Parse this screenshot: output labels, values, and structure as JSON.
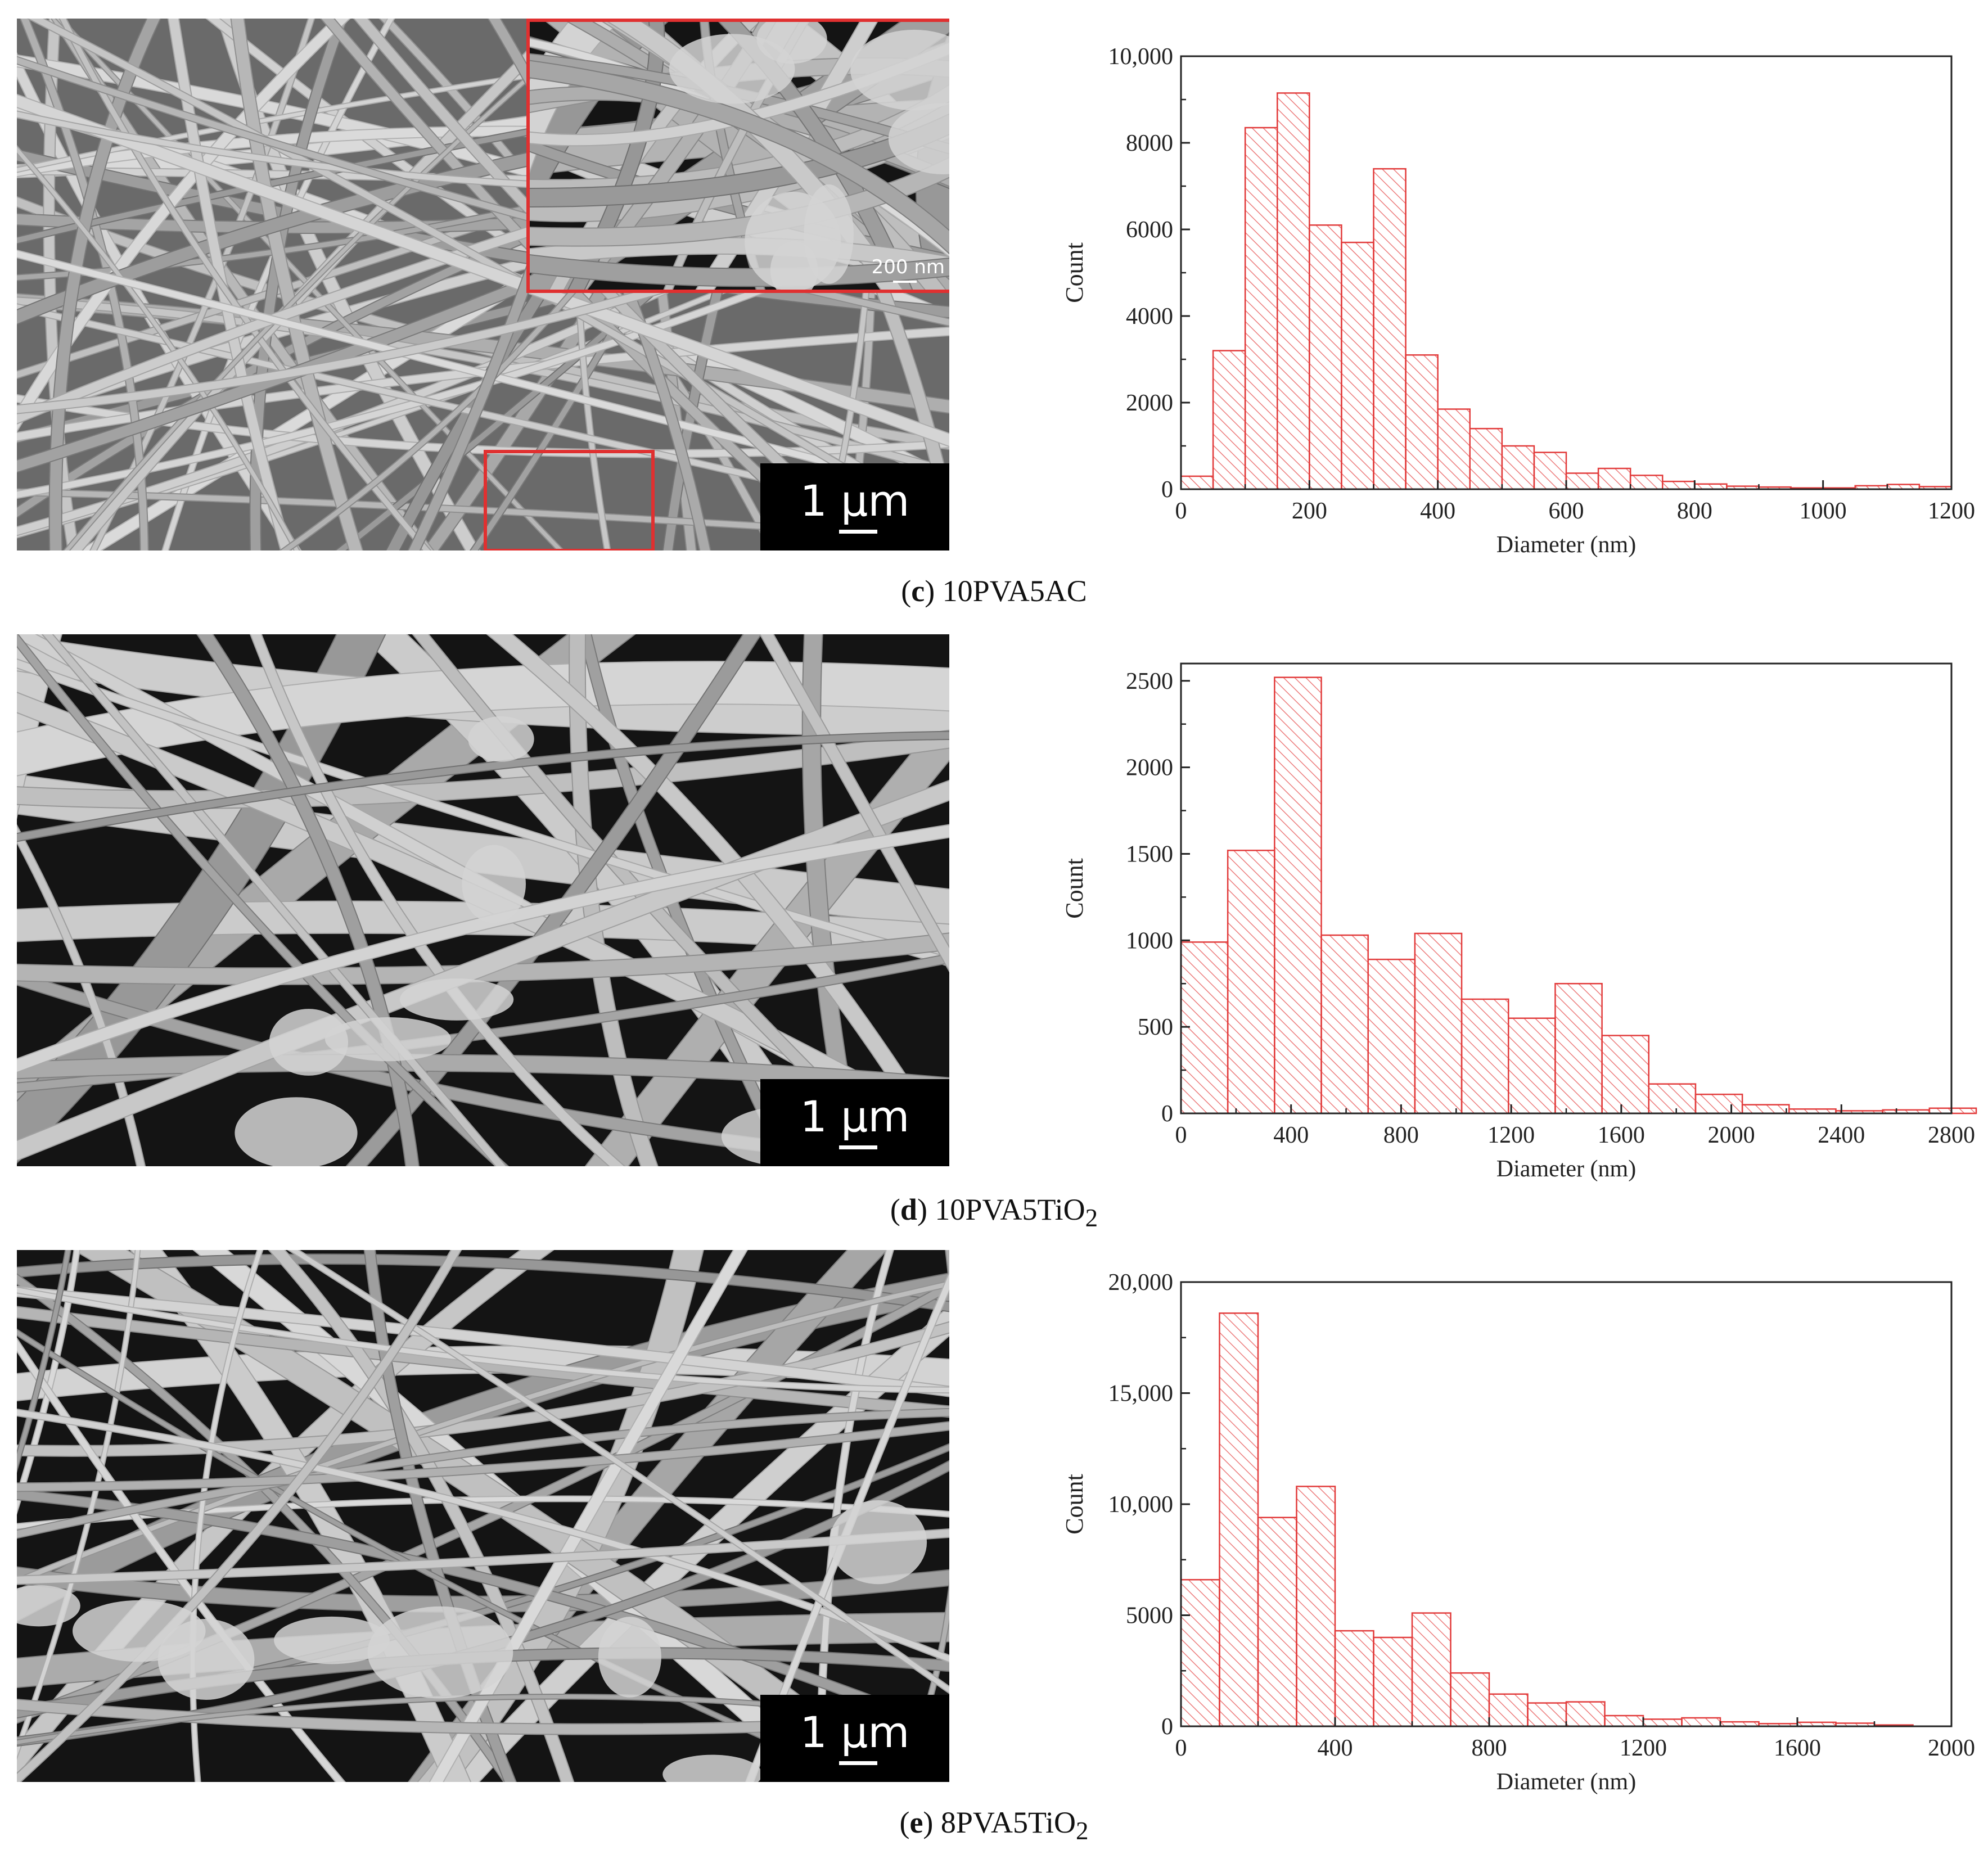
{
  "colors": {
    "bar_stroke": "#e23b3b",
    "hatch": "#ec7b7b",
    "inset_border": "#e03030"
  },
  "panels": [
    {
      "caption": {
        "letter": "c",
        "name": "10PVA5AC",
        "sub": ""
      },
      "micrograph": {
        "scale_bar": "1 µm",
        "inset_scale_bar": "200 nm",
        "style": "thin"
      }
    },
    {
      "caption": {
        "letter": "d",
        "name": "10PVA5TiO",
        "sub": "2"
      },
      "micrograph": {
        "scale_bar": "1 µm",
        "style": "thick"
      }
    },
    {
      "caption": {
        "letter": "e",
        "name": "8PVA5TiO",
        "sub": "2"
      },
      "micrograph": {
        "scale_bar": "1 µm",
        "style": "mixed"
      }
    }
  ],
  "chart_data": [
    {
      "type": "bar",
      "xlabel": "Diameter (nm)",
      "ylabel": "Count",
      "xlim": [
        0,
        1200
      ],
      "ylim": [
        0,
        10000
      ],
      "xticks": [
        0,
        200,
        400,
        600,
        800,
        1000,
        1200
      ],
      "yticks": [
        0,
        2000,
        4000,
        6000,
        8000,
        10000
      ],
      "ytick_labels": [
        "0",
        "2000",
        "4000",
        "6000",
        "8000",
        "10,000"
      ],
      "bin_width": 50,
      "bin_start": 0,
      "values": [
        300,
        3200,
        8350,
        9150,
        6100,
        5700,
        7400,
        3100,
        1850,
        1400,
        1000,
        850,
        370,
        480,
        320,
        180,
        120,
        70,
        50,
        30,
        30,
        80,
        110,
        60
      ]
    },
    {
      "type": "bar",
      "xlabel": "Diameter (nm)",
      "ylabel": "Count",
      "xlim": [
        0,
        2800
      ],
      "ylim": [
        0,
        2600
      ],
      "xticks": [
        0,
        400,
        800,
        1200,
        1600,
        2000,
        2400,
        2800
      ],
      "yticks": [
        0,
        500,
        1000,
        1500,
        2000,
        2500
      ],
      "ytick_labels": [
        "0",
        "500",
        "1000",
        "1500",
        "2000",
        "2500"
      ],
      "bin_width": 170,
      "bin_start": 0,
      "values": [
        990,
        1520,
        2520,
        1030,
        890,
        1040,
        660,
        550,
        750,
        450,
        170,
        110,
        50,
        25,
        15,
        20,
        30
      ]
    },
    {
      "type": "bar",
      "xlabel": "Diameter (nm)",
      "ylabel": "Count",
      "xlim": [
        0,
        2000
      ],
      "ylim": [
        0,
        20000
      ],
      "xticks": [
        0,
        400,
        800,
        1200,
        1600,
        2000
      ],
      "yticks": [
        0,
        5000,
        10000,
        15000,
        20000
      ],
      "ytick_labels": [
        "0",
        "5000",
        "10,000",
        "15,000",
        "20,000"
      ],
      "bin_width": 100,
      "bin_start": 0,
      "values": [
        6600,
        18600,
        9400,
        10800,
        4300,
        4000,
        5100,
        2400,
        1450,
        1050,
        1100,
        480,
        320,
        380,
        200,
        120,
        180,
        140,
        60
      ]
    }
  ]
}
